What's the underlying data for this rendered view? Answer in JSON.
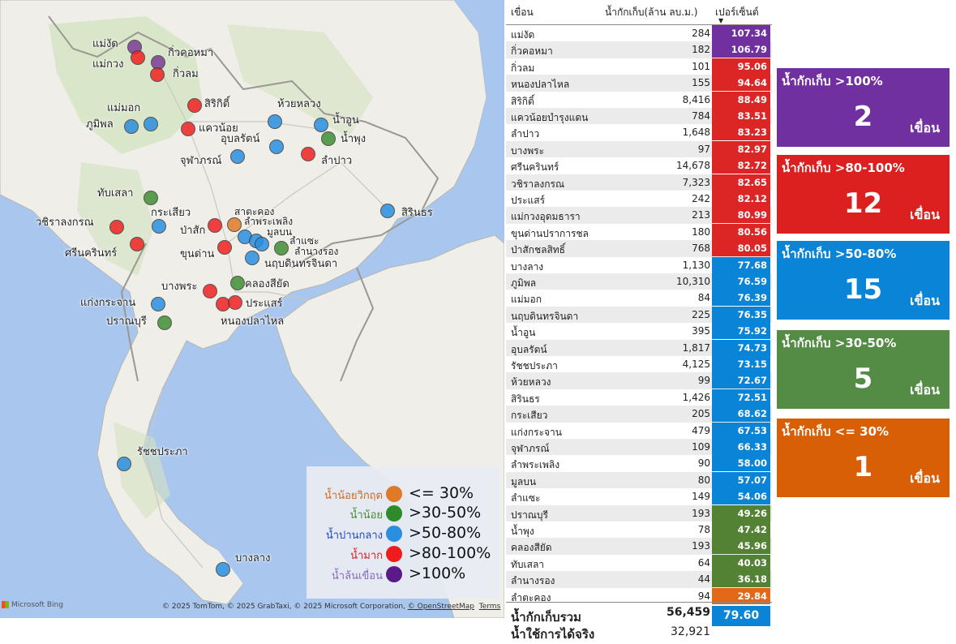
{
  "legend": [
    {
      "name": "น้ำน้อยวิกฤต",
      "range": "<= 30%",
      "color": "#e07a28",
      "name_color": "#d46a1e"
    },
    {
      "name": "น้ำน้อย",
      "range": ">30-50%",
      "color": "#2f8a2a",
      "name_color": "#4b8a35"
    },
    {
      "name": "น้ำปานกลาง",
      "range": ">50-80%",
      "color": "#2a8fe0",
      "name_color": "#2046c8"
    },
    {
      "name": "น้ำมาก",
      "range": ">80-100%",
      "color": "#ee1c1c",
      "name_color": "#e02020"
    },
    {
      "name": "น้ำล้นเขื่อน",
      "range": ">100%",
      "color": "#5b1a8a",
      "name_color": "#8a6abf"
    }
  ],
  "map": {
    "attribution": "© 2025 TomTom, © 2025 GrabTaxi, © 2025 Microsoft Corporation, ",
    "osm_link": "© OpenStreetMap",
    "terms_link": "Terms",
    "bing": "Microsoft Bing",
    "labels": [
      "แม่งัด",
      "กิ่วคอหมา",
      "แม่กวง",
      "กิ่วลม",
      "แม่มอก",
      "สิริกิติ์",
      "ห้วยหลวง",
      "ภูมิพล",
      "น้ำอูน",
      "แควน้อย",
      "อุบลรัตน์",
      "น้ำพุง",
      "จุฬาภรณ์",
      "ลำปาว",
      "ทับเสลา",
      "สาตะคอง",
      "กระเสียว",
      "ลำพระเพลิง",
      "วชิราลงกรณ",
      "มูลบน",
      "ป่าสัก",
      "สิรินธร",
      "ลำแซะ",
      "ศรีนครินทร์",
      "ลำนางรอง",
      "ขุนด่าน",
      "นฤบดินทรจินดา",
      "บางพระ",
      "คลองสียัด",
      "แก่งกระจาน",
      "ประแสร์",
      "ปราณบุรี",
      "หนองปลาไหล",
      "รัชชประภา",
      "บางลาง"
    ]
  },
  "table": {
    "col_name": "เขื่อน",
    "col_volume": "น้ำกักเก็บ(ล้าน ลบ.ม.)",
    "col_percent": "เปอร์เซ็นต์",
    "sort_icon": "sort-descending-icon",
    "rows": [
      {
        "name": "แม่งัด",
        "volume": "284",
        "percent": "107.34",
        "level": "purple"
      },
      {
        "name": "กิ่วคอหมา",
        "volume": "182",
        "percent": "106.79",
        "level": "purple"
      },
      {
        "name": "กิ่วลม",
        "volume": "101",
        "percent": "95.06",
        "level": "red"
      },
      {
        "name": "หนองปลาไหล",
        "volume": "155",
        "percent": "94.64",
        "level": "red"
      },
      {
        "name": "สิริกิติ์",
        "volume": "8,416",
        "percent": "88.49",
        "level": "red"
      },
      {
        "name": "แควน้อยบำรุงแดน",
        "volume": "784",
        "percent": "83.51",
        "level": "red"
      },
      {
        "name": "ลำปาว",
        "volume": "1,648",
        "percent": "83.23",
        "level": "red"
      },
      {
        "name": "บางพระ",
        "volume": "97",
        "percent": "82.97",
        "level": "red"
      },
      {
        "name": "ศรีนครินทร์",
        "volume": "14,678",
        "percent": "82.72",
        "level": "red"
      },
      {
        "name": "วชิราลงกรณ",
        "volume": "7,323",
        "percent": "82.65",
        "level": "red"
      },
      {
        "name": "ประแสร์",
        "volume": "242",
        "percent": "82.12",
        "level": "red"
      },
      {
        "name": "แม่กวงอุดมธารา",
        "volume": "213",
        "percent": "80.99",
        "level": "red"
      },
      {
        "name": "ขุนด่านปราการชล",
        "volume": "180",
        "percent": "80.56",
        "level": "red"
      },
      {
        "name": "ป่าสักชลสิทธิ์",
        "volume": "768",
        "percent": "80.05",
        "level": "red"
      },
      {
        "name": "บางลาง",
        "volume": "1,130",
        "percent": "77.68",
        "level": "blue"
      },
      {
        "name": "ภูมิพล",
        "volume": "10,310",
        "percent": "76.59",
        "level": "blue"
      },
      {
        "name": "แม่มอก",
        "volume": "84",
        "percent": "76.39",
        "level": "blue"
      },
      {
        "name": "นฤบดินทรจินดา",
        "volume": "225",
        "percent": "76.35",
        "level": "blue"
      },
      {
        "name": "น้ำอูน",
        "volume": "395",
        "percent": "75.92",
        "level": "blue"
      },
      {
        "name": "อุบลรัตน์",
        "volume": "1,817",
        "percent": "74.73",
        "level": "blue"
      },
      {
        "name": "รัชชประภา",
        "volume": "4,125",
        "percent": "73.15",
        "level": "blue"
      },
      {
        "name": "ห้วยหลวง",
        "volume": "99",
        "percent": "72.67",
        "level": "blue"
      },
      {
        "name": "สิรินธร",
        "volume": "1,426",
        "percent": "72.51",
        "level": "blue"
      },
      {
        "name": "กระเสียว",
        "volume": "205",
        "percent": "68.62",
        "level": "blue"
      },
      {
        "name": "แก่งกระจาน",
        "volume": "479",
        "percent": "67.53",
        "level": "blue"
      },
      {
        "name": "จุฬาภรณ์",
        "volume": "109",
        "percent": "66.33",
        "level": "blue"
      },
      {
        "name": "ลำพระเพลิง",
        "volume": "90",
        "percent": "58.00",
        "level": "blue"
      },
      {
        "name": "มูลบน",
        "volume": "80",
        "percent": "57.07",
        "level": "blue"
      },
      {
        "name": "ลำแซะ",
        "volume": "149",
        "percent": "54.06",
        "level": "blue"
      },
      {
        "name": "ปราณบุรี",
        "volume": "193",
        "percent": "49.26",
        "level": "green"
      },
      {
        "name": "น้ำพุง",
        "volume": "78",
        "percent": "47.42",
        "level": "green"
      },
      {
        "name": "คลองสียัด",
        "volume": "193",
        "percent": "45.96",
        "level": "green"
      },
      {
        "name": "ทับเสลา",
        "volume": "64",
        "percent": "40.03",
        "level": "green"
      },
      {
        "name": "ลำนางรอง",
        "volume": "44",
        "percent": "36.18",
        "level": "green"
      },
      {
        "name": "ลำตะคอง",
        "volume": "94",
        "percent": "29.84",
        "level": "orange"
      }
    ],
    "total_label": "น้ำกักเก็บรวม",
    "total_volume": "56,459",
    "total_percent": "79.60",
    "usable_label": "น้ำใช้การได้จริง",
    "usable_volume": "32,921"
  },
  "cards": [
    {
      "title": "น้ำกักเก็บ >100%",
      "count": "2",
      "unit": "เขื่อน",
      "color": "#7030a0"
    },
    {
      "title": "น้ำกักเก็บ >80-100%",
      "count": "12",
      "unit": "เขื่อน",
      "color": "#dc1f1f"
    },
    {
      "title": "น้ำกักเก็บ >50-80%",
      "count": "15",
      "unit": "เขื่อน",
      "color": "#0a84d6"
    },
    {
      "title": "น้ำกักเก็บ >30-50%",
      "count": "5",
      "unit": "เขื่อน",
      "color": "#548b45"
    },
    {
      "title": "น้ำกักเก็บ <= 30%",
      "count": "1",
      "unit": "เขื่อน",
      "color": "#d95f06"
    }
  ]
}
